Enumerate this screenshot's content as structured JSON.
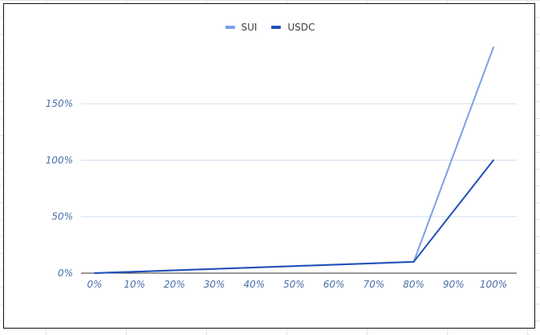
{
  "chart_data": {
    "type": "line",
    "title": "",
    "xlabel": "",
    "ylabel": "",
    "categories": [
      "0%",
      "10%",
      "20%",
      "30%",
      "40%",
      "50%",
      "60%",
      "70%",
      "80%",
      "90%",
      "100%"
    ],
    "yticks": [
      "0%",
      "50%",
      "100%",
      "150%"
    ],
    "ytick_values": [
      0,
      50,
      100,
      150
    ],
    "ylim": [
      0,
      200
    ],
    "grid": true,
    "legend": "top-center",
    "series": [
      {
        "name": "SUI",
        "color": "#7aa0e4",
        "values": [
          0,
          1.25,
          2.5,
          3.75,
          5,
          6.25,
          7.5,
          8.75,
          10,
          105,
          200
        ]
      },
      {
        "name": "USDC",
        "color": "#1f4fb8",
        "values": [
          0,
          1.25,
          2.5,
          3.75,
          5,
          6.25,
          7.5,
          8.75,
          10,
          55,
          100
        ]
      }
    ],
    "colors": {
      "tick_label": "#4a6ea8",
      "gridline": "#cfe0f0",
      "baseline": "#333333"
    }
  }
}
